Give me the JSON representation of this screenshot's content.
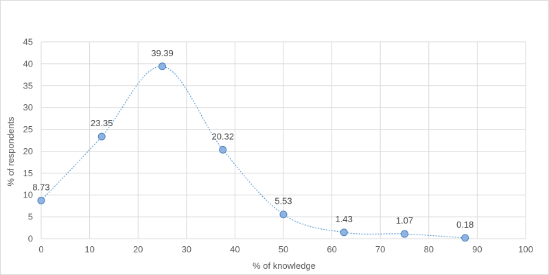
{
  "chart_data": {
    "type": "scatter",
    "style": "smooth-line-with-markers",
    "xlabel": "% of knowledge",
    "ylabel": "% of respondents",
    "xlim": [
      0,
      100
    ],
    "ylim": [
      0,
      45
    ],
    "xticks": [
      "0",
      "10",
      "20",
      "30",
      "40",
      "50",
      "60",
      "70",
      "80",
      "90",
      "100"
    ],
    "yticks": [
      "0",
      "5",
      "10",
      "15",
      "20",
      "25",
      "30",
      "35",
      "40",
      "45"
    ],
    "grid": true,
    "series": [
      {
        "x": [
          0,
          12.5,
          25,
          37.5,
          50,
          62.5,
          75,
          87.5
        ],
        "y": [
          8.73,
          23.35,
          39.39,
          20.32,
          5.53,
          1.43,
          1.07,
          0.18
        ],
        "labels": [
          "8.73",
          "23.35",
          "39.39",
          "20.32",
          "5.53",
          "1.43",
          "1.07",
          "0.18"
        ],
        "line_color": "#5b9bd5",
        "marker_fill": "#8eb4e3",
        "marker_edge": "#4a7ebb"
      }
    ]
  }
}
